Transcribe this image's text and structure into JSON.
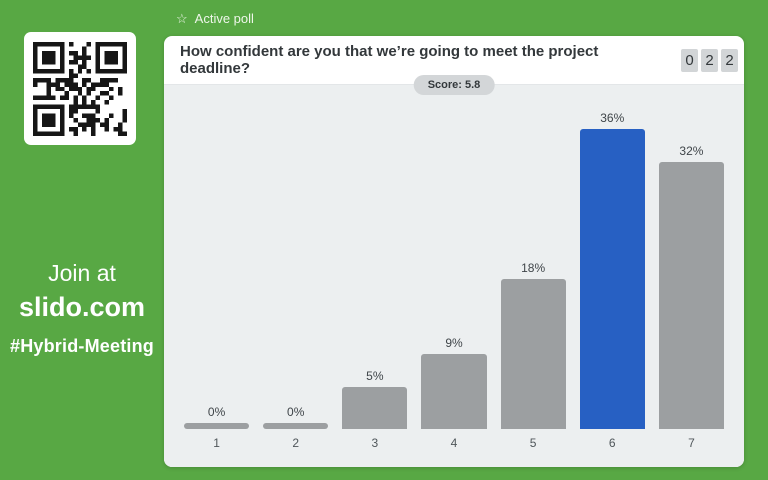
{
  "branding": {
    "join_line": "Join at",
    "site": "slido.com",
    "event_hashtag": "#Hybrid-Meeting"
  },
  "topbar": {
    "star_icon": "☆",
    "status_label": "Active poll"
  },
  "poll": {
    "question": "How confident are you that we’re going to meet the project deadline?",
    "votes_counter": [
      "0",
      "2",
      "2"
    ],
    "score_label": "Score: 5.8"
  },
  "chart_data": {
    "type": "bar",
    "title": "How confident are you that we’re going to meet the project deadline?",
    "categories": [
      "1",
      "2",
      "3",
      "4",
      "5",
      "6",
      "7"
    ],
    "values": [
      0,
      0,
      5,
      9,
      18,
      36,
      32
    ],
    "value_labels": [
      "0%",
      "0%",
      "5%",
      "9%",
      "18%",
      "36%",
      "32%"
    ],
    "highlight_index": 5,
    "xlabel": "",
    "ylabel": "",
    "ylim": [
      0,
      36
    ],
    "grid": false,
    "legend": false,
    "colors": {
      "bar": "#9C9FA1",
      "highlight": "#2760C3"
    }
  },
  "colors": {
    "background_green": "#58A844",
    "card_bg": "#ffffff",
    "chart_bg": "#ECEFF0",
    "counter_box_bg": "#D2D5D7",
    "score_pill_bg": "#D3D6D8"
  }
}
